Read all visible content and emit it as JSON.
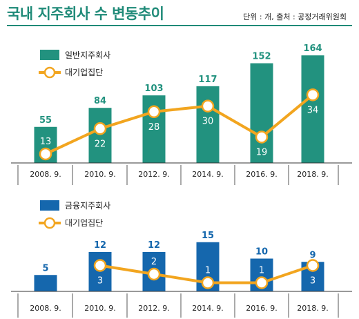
{
  "header": {
    "title": "국내 지주회사 수 변동추이",
    "source": "단위 : 개, 출처 : 공정거래위원회"
  },
  "colors": {
    "title": "#1f8a78",
    "panel1_bar": "#22927f",
    "panel2_bar": "#1567ad",
    "line": "#f2a51f",
    "marker_fill": "#ffffff"
  },
  "chart_data": [
    {
      "type": "bar",
      "categories": [
        "2008. 9.",
        "2010. 9.",
        "2012. 9.",
        "2014. 9.",
        "2016. 9.",
        "2018. 9."
      ],
      "series": [
        {
          "name": "일반지주회사",
          "type": "bar",
          "values": [
            55,
            84,
            103,
            117,
            152,
            164
          ]
        },
        {
          "name": "대기업집단",
          "type": "line",
          "values": [
            13,
            22,
            28,
            30,
            19,
            34
          ]
        }
      ],
      "legend_position": "top-left",
      "grid": false
    },
    {
      "type": "bar",
      "categories": [
        "2008. 9.",
        "2010. 9.",
        "2012. 9.",
        "2014. 9.",
        "2016. 9.",
        "2018. 9."
      ],
      "series": [
        {
          "name": "금융지주회사",
          "type": "bar",
          "values": [
            5,
            12,
            12,
            15,
            10,
            9
          ]
        },
        {
          "name": "대기업집단",
          "type": "line",
          "values": [
            null,
            3,
            2,
            1,
            1,
            3
          ]
        }
      ],
      "legend_position": "top-left",
      "grid": false
    }
  ]
}
